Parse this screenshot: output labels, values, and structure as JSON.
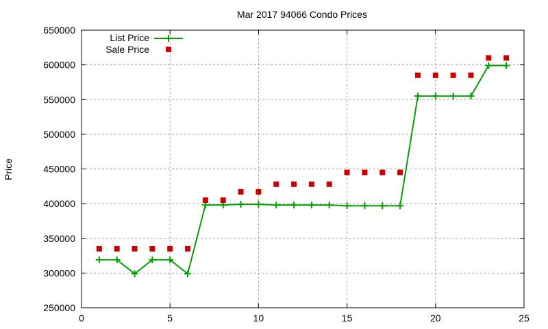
{
  "chart_data": {
    "type": "line",
    "title": "Mar 2017 94066 Condo Prices",
    "xlabel": "",
    "ylabel": "Price",
    "xlim": [
      0,
      25
    ],
    "ylim": [
      250000,
      650000
    ],
    "x_ticks": [
      0,
      5,
      10,
      15,
      20,
      25
    ],
    "y_ticks": [
      250000,
      300000,
      350000,
      400000,
      450000,
      500000,
      550000,
      600000,
      650000
    ],
    "grid": true,
    "legend_position": "top-left",
    "x": [
      1,
      2,
      3,
      4,
      5,
      6,
      7,
      8,
      9,
      10,
      11,
      12,
      13,
      14,
      15,
      16,
      17,
      18,
      19,
      20,
      21,
      22,
      23,
      24
    ],
    "series": [
      {
        "name": "List Price",
        "style": "line+cross",
        "color": "#00a000",
        "values": [
          319000,
          319000,
          299000,
          319000,
          319000,
          299000,
          398000,
          398000,
          399000,
          399000,
          398000,
          398000,
          398000,
          398000,
          397000,
          397000,
          397000,
          397000,
          555000,
          555000,
          555000,
          555000,
          599000,
          599000
        ]
      },
      {
        "name": "Sale Price",
        "style": "square-markers",
        "color": "#cc0000",
        "values": [
          335000,
          335000,
          335000,
          335000,
          335000,
          335000,
          405000,
          405000,
          417000,
          417000,
          428000,
          428000,
          428000,
          428000,
          445000,
          445000,
          445000,
          445000,
          585000,
          585000,
          585000,
          585000,
          610000,
          610000
        ]
      }
    ]
  }
}
